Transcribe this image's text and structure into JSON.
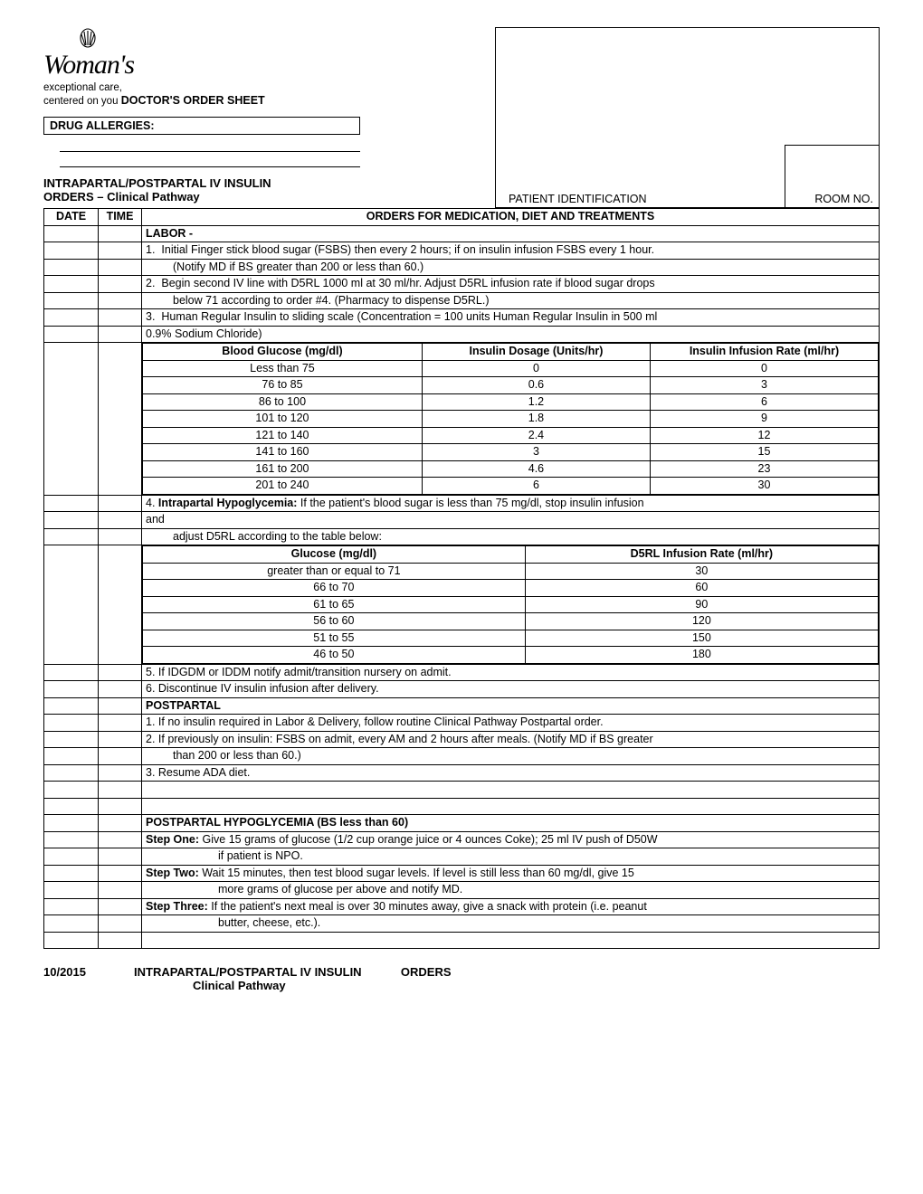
{
  "logo": {
    "brand": "Woman's",
    "tagline1": "exceptional care,",
    "tagline2": "centered on you"
  },
  "sheet_title": "DOCTOR'S ORDER SHEET",
  "allergy_label": "DRUG ALLERGIES:",
  "pid_label": "PATIENT IDENTIFICATION",
  "room_label": "ROOM NO.",
  "title1": "INTRAPARTAL/POSTPARTAL IV INSULIN",
  "title2": "ORDERS – Clinical Pathway",
  "columns": {
    "date": "DATE",
    "time": "TIME",
    "orders": "ORDERS FOR MEDICATION, DIET AND TREATMENTS"
  },
  "labor_heading": "LABOR -",
  "labor_items": [
    {
      "num": "1.",
      "text": "Initial Finger stick blood sugar (FSBS) then every 2 hours; if on insulin infusion FSBS every 1 hour.",
      "cont": "(Notify MD if BS greater than 200 or less than 60.)"
    },
    {
      "num": "2.",
      "text": "Begin second IV line with D5RL 1000 ml at 30 ml/hr.  Adjust D5RL infusion rate if blood sugar drops",
      "cont": "below 71 according to order #4.  (Pharmacy to dispense D5RL.)"
    },
    {
      "num": "3.",
      "text": "Human Regular Insulin to sliding scale (Concentration = 100 units Human Regular Insulin in 500 ml",
      "cont_noindent": "0.9% Sodium Chloride)"
    }
  ],
  "insulin_table": {
    "headers": [
      "Blood Glucose (mg/dl)",
      "Insulin Dosage (Units/hr)",
      "Insulin Infusion Rate (ml/hr)"
    ],
    "rows": [
      [
        "Less than 75",
        "0",
        "0"
      ],
      [
        "76 to 85",
        "0.6",
        "3"
      ],
      [
        "86 to 100",
        "1.2",
        "6"
      ],
      [
        "101 to 120",
        "1.8",
        "9"
      ],
      [
        "121 to 140",
        "2.4",
        "12"
      ],
      [
        "141 to 160",
        "3",
        "15"
      ],
      [
        "161 to 200",
        "4.6",
        "23"
      ],
      [
        "201 to 240",
        "6",
        "30"
      ]
    ],
    "col_widths": [
      "38%",
      "31%",
      "31%"
    ]
  },
  "item4_line1": "Intrapartal Hypoglycemia:",
  "item4_pre": "4.  ",
  "item4_text": "  If the patient's blood sugar is less than 75 mg/dl, stop insulin infusion",
  "item4_line2": "and",
  "item4_line3": "adjust D5RL according to the table below:",
  "d5rl_table": {
    "headers": [
      "Glucose (mg/dl)",
      "D5RL Infusion Rate (ml/hr)"
    ],
    "rows": [
      [
        "greater than or equal to 71",
        "30"
      ],
      [
        "66 to 70",
        "60"
      ],
      [
        "61 to 65",
        "90"
      ],
      [
        "56 to 60",
        "120"
      ],
      [
        "51 to 55",
        "150"
      ],
      [
        "46 to 50",
        "180"
      ]
    ],
    "col_widths": [
      "52%",
      "48%"
    ]
  },
  "labor_5": "5.  If IDGDM or IDDM notify admit/transition nursery on admit.",
  "labor_6": "6.  Discontinue IV insulin infusion after delivery.",
  "postpartal_heading": "POSTPARTAL",
  "post_1": "1.  If no insulin required in Labor & Delivery, follow routine Clinical Pathway Postpartal order.",
  "post_2a": "2.  If previously on insulin:  FSBS on admit, every AM and 2 hours after meals.  (Notify MD if BS greater",
  "post_2b": "than 200 or less than 60.)",
  "post_3": "3.  Resume ADA diet.",
  "hypo_heading": "POSTPARTAL HYPOGLYCEMIA (BS less than 60)",
  "step1_label": "Step One:",
  "step1_a": "   Give 15 grams of glucose (1/2 cup orange juice or 4 ounces Coke); 25 ml IV push of D50W",
  "step1_b": "if patient is NPO.",
  "step2_label": "Step Two:",
  "step2_a": "   Wait 15 minutes, then test blood sugar levels.  If level is still less than 60 mg/dl, give 15",
  "step2_b": "more grams of glucose per above and notify MD.",
  "step3_label": "Step Three:",
  "step3_a": " If the patient's next meal is over 30 minutes away, give a snack with protein (i.e. peanut",
  "step3_b": "butter, cheese, etc.).",
  "footer": {
    "date": "10/2015",
    "line1a": "INTRAPARTAL/POSTPARTAL IV INSULIN",
    "line1b": "ORDERS",
    "line2": "Clinical Pathway"
  },
  "colors": {
    "text": "#000000",
    "bg": "#ffffff",
    "border": "#000000"
  }
}
